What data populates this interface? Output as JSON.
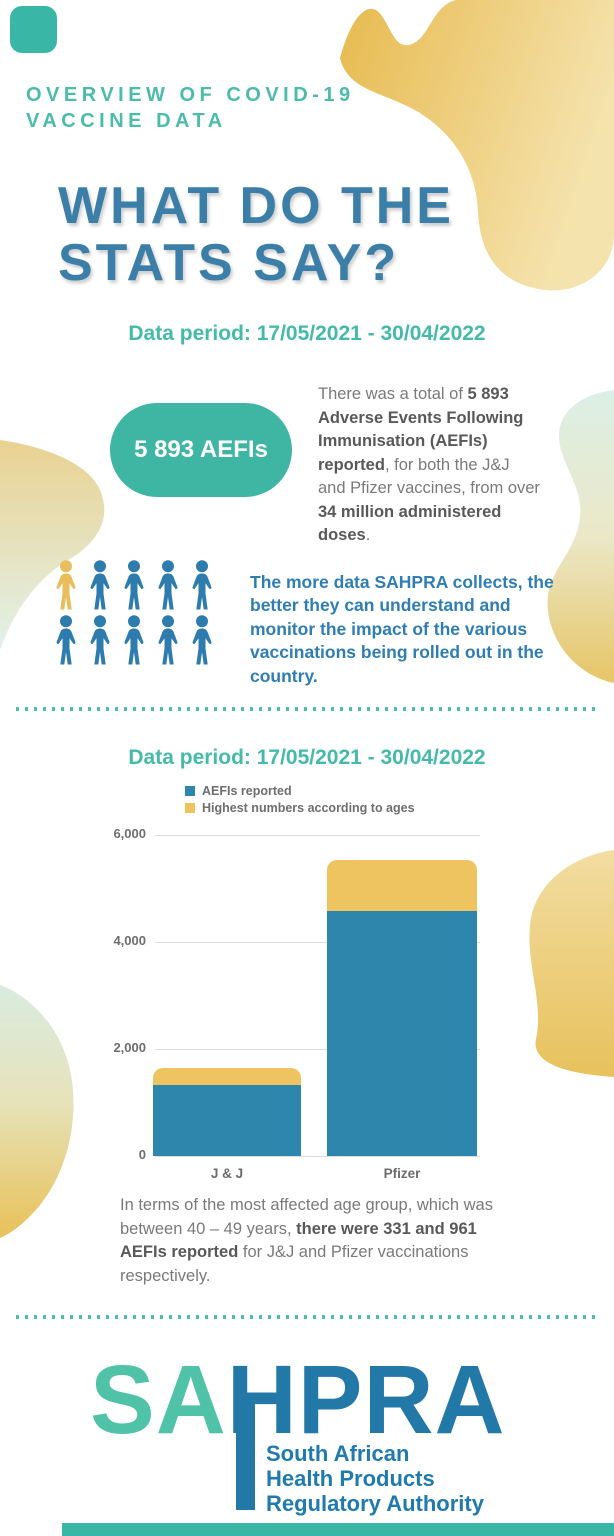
{
  "header": {
    "kicker_line1": "OVERVIEW OF COVID-19",
    "kicker_line2": "VACCINE DATA",
    "title_line1": "WHAT DO THE",
    "title_line2": "STATS SAY?"
  },
  "shared": {
    "data_period": "Data period: 17/05/2021 - 30/04/2022"
  },
  "section_summary": {
    "stat_pill": "5 893 AEFIs",
    "paragraph": [
      {
        "t": "There was a total of "
      },
      {
        "t": "5 893 Adverse Events Following Immunisation (AEFIs) reported",
        "b": true
      },
      {
        "t": ", for both the J&J and Pfizer vaccines, from over "
      },
      {
        "t": "34 million administered doses",
        "b": true
      },
      {
        "t": "."
      }
    ],
    "blue_text": "The more data SAHPRA collects, the better they can understand and monitor the impact of the various vaccinations being rolled out in the country."
  },
  "people": {
    "total": 10,
    "per_row": 5,
    "rows": 2,
    "highlight_first_color": "#E9BD5B",
    "color": "#2E7CAD"
  },
  "chart_data": {
    "type": "bar",
    "stacked": true,
    "categories": [
      "J & J",
      "Pfizer"
    ],
    "series": [
      {
        "name": "AEFIs reported",
        "color": "#2E86AD",
        "values": [
          1321,
          4572
        ]
      },
      {
        "name": "Highest numbers according to ages",
        "color": "#EDC45F",
        "values": [
          331,
          961
        ]
      }
    ],
    "ylim": [
      0,
      6000
    ],
    "yticks": [
      {
        "label": "0",
        "value": 0
      },
      {
        "label": "2,000",
        "value": 2000
      },
      {
        "label": "4,000",
        "value": 4000
      },
      {
        "label": "6,000",
        "value": 6000
      }
    ],
    "grid": true,
    "legend_position": "top-left",
    "xlabel": "",
    "ylabel": ""
  },
  "section_chart": {
    "paragraph": [
      {
        "t": "In terms of the most affected age group, which was between 40 – 49 years, "
      },
      {
        "t": "there were 331 and 961 AEFIs reported",
        "b": true
      },
      {
        "t": " for J&J and Pfizer vaccinations respectively."
      }
    ]
  },
  "logo": {
    "wordmark_teal": "SA",
    "wordmark_blue": "HPRA",
    "tagline": [
      "South African",
      "Health Products",
      "Regulatory Authority"
    ]
  },
  "decor": {
    "teal_accent": "#3AB6A6",
    "teal_text": "#44BAA9",
    "title_blue": "#3B7FA9",
    "body_blue": "#2E7EB3",
    "gold": "#E8BC55",
    "pale_gold": "#F4E0A8",
    "pale_mint": "#DCEFE6",
    "logo_teal": "#4FC2A8",
    "logo_blue": "#2279A8"
  }
}
